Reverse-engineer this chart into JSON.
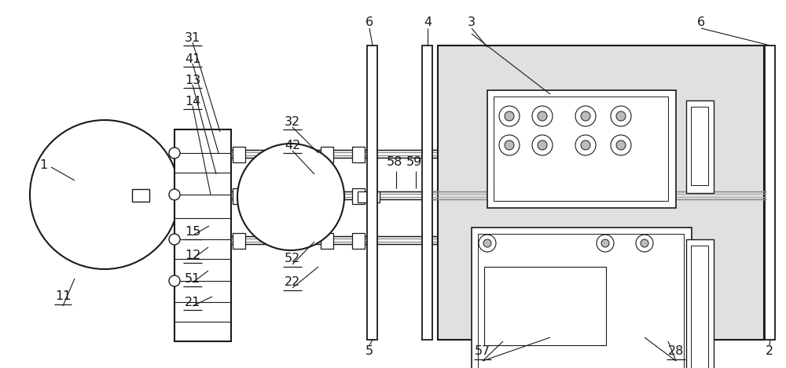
{
  "bg_color": "#ffffff",
  "line_color": "#1a1a1a",
  "gray_fill": "#e0e0e0",
  "white": "#ffffff",
  "dot_gray": "#aaaaaa"
}
